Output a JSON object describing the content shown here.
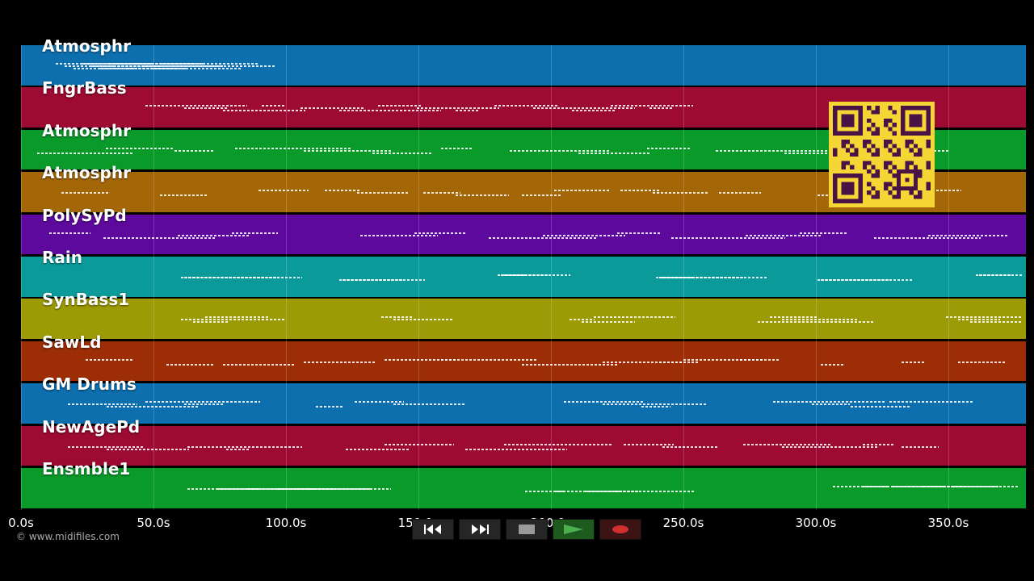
{
  "tracks": [
    {
      "label": "Atmosphr",
      "color": "#0d6fae"
    },
    {
      "label": "FngrBass",
      "color": "#9d0a32"
    },
    {
      "label": "Atmosphr",
      "color": "#0a9a2a"
    },
    {
      "label": "Atmosphr",
      "color": "#a36708"
    },
    {
      "label": "PolySyPd",
      "color": "#5e099e"
    },
    {
      "label": "Rain",
      "color": "#0a9a9a"
    },
    {
      "label": "SynBass1",
      "color": "#9c9a05"
    },
    {
      "label": "SawLd",
      "color": "#9d2d05"
    },
    {
      "label": "GM Drums",
      "color": "#0d6fae"
    },
    {
      "label": "NewAgePd",
      "color": "#9d0a32"
    },
    {
      "label": "Ensmble1",
      "color": "#0a9a2a"
    }
  ],
  "timeline": {
    "tick_labels": [
      "0.0s",
      "50.0s",
      "100.0s",
      "150.0s",
      "200.0s",
      "250.0s",
      "300.0s",
      "350.0s"
    ]
  },
  "copyright": "© www.midifiles.com",
  "transport": {
    "rewind": "rewind-icon",
    "fast_forward": "fast-forward-icon",
    "stop": "stop-icon",
    "play": "play-icon",
    "record": "record-icon"
  },
  "colors": {
    "background": "#000000",
    "play_green": "#4caf50",
    "record_red": "#d03030",
    "qr_yellow": "#f5d634",
    "qr_dark": "#4a1346"
  }
}
